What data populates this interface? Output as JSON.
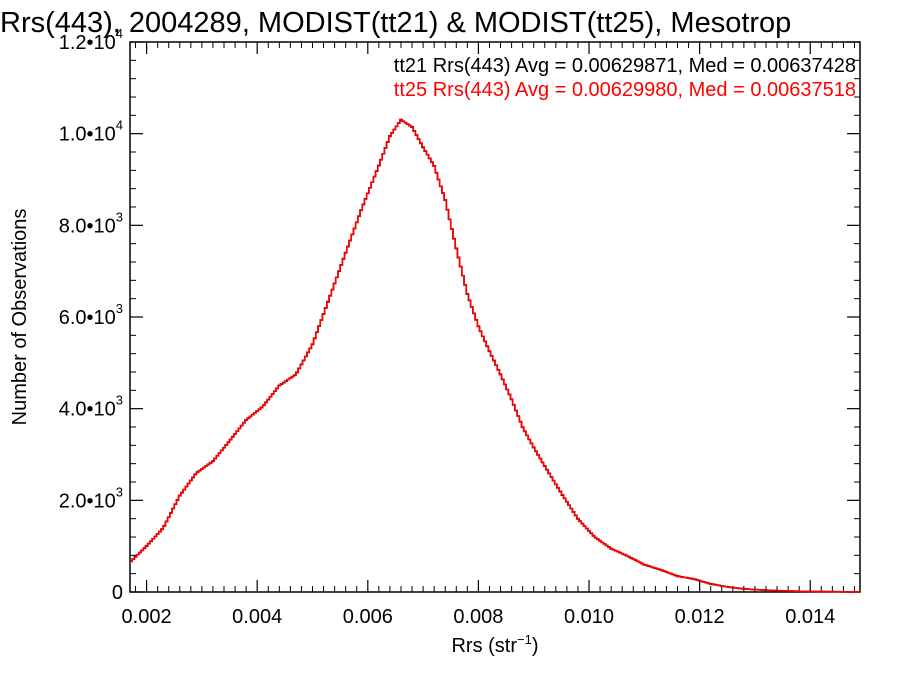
{
  "chart_data": {
    "type": "line",
    "title": "Rrs(443), 2004289, MODIST(tt21) & MODIST(tt25), Mesotrop",
    "xlabel_main": "Rrs (str",
    "xlabel_sup": "−1",
    "xlabel_end": ")",
    "ylabel": "Number of Observations",
    "xlim": [
      0.0017,
      0.0149
    ],
    "ylim": [
      0,
      12000
    ],
    "x_ticks": [
      {
        "value": 0.002,
        "label": "0.002"
      },
      {
        "value": 0.004,
        "label": "0.004"
      },
      {
        "value": 0.006,
        "label": "0.006"
      },
      {
        "value": 0.008,
        "label": "0.008"
      },
      {
        "value": 0.01,
        "label": "0.010"
      },
      {
        "value": 0.012,
        "label": "0.012"
      },
      {
        "value": 0.014,
        "label": "0.014"
      }
    ],
    "y_ticks": [
      {
        "value": 0,
        "mant": "0",
        "exp": ""
      },
      {
        "value": 2000,
        "mant": "2.0•10",
        "exp": "3"
      },
      {
        "value": 4000,
        "mant": "4.0•10",
        "exp": "3"
      },
      {
        "value": 6000,
        "mant": "6.0•10",
        "exp": "3"
      },
      {
        "value": 8000,
        "mant": "8.0•10",
        "exp": "3"
      },
      {
        "value": 10000,
        "mant": "1.0•10",
        "exp": "4"
      },
      {
        "value": 12000,
        "mant": "1.2•10",
        "exp": "4"
      }
    ],
    "legend_placement": "top-right",
    "series": [
      {
        "name": "tt21",
        "color": "#000000",
        "stats_text": "tt21 Rrs(443) Avg = 0.00629871, Med = 0.00637428",
        "x": [
          0.0017,
          0.002,
          0.0023,
          0.0026,
          0.0029,
          0.0032,
          0.0035,
          0.0038,
          0.0041,
          0.0044,
          0.0047,
          0.005,
          0.0053,
          0.0056,
          0.0059,
          0.0062,
          0.0064,
          0.0066,
          0.0068,
          0.007,
          0.0072,
          0.0074,
          0.0076,
          0.0078,
          0.008,
          0.0082,
          0.0084,
          0.0086,
          0.0088,
          0.009,
          0.0092,
          0.0095,
          0.0098,
          0.0101,
          0.0104,
          0.0107,
          0.011,
          0.0113,
          0.0116,
          0.0119,
          0.0122,
          0.0125,
          0.0128,
          0.0131,
          0.0134,
          0.0137,
          0.014,
          0.0143,
          0.0146,
          0.0149
        ],
        "y": [
          650,
          1000,
          1400,
          2100,
          2600,
          2850,
          3300,
          3750,
          4050,
          4500,
          4750,
          5400,
          6400,
          7400,
          8400,
          9300,
          9950,
          10300,
          10150,
          9700,
          9300,
          8550,
          7500,
          6500,
          5800,
          5250,
          4750,
          4200,
          3600,
          3150,
          2750,
          2150,
          1600,
          1200,
          950,
          780,
          600,
          480,
          350,
          280,
          180,
          110,
          70,
          45,
          30,
          18,
          12,
          8,
          5,
          3
        ]
      },
      {
        "name": "tt25",
        "color": "#ff0000",
        "stats_text": "tt25 Rrs(443) Avg = 0.00629980, Med = 0.00637518",
        "x": [
          0.0017,
          0.002,
          0.0023,
          0.0026,
          0.0029,
          0.0032,
          0.0035,
          0.0038,
          0.0041,
          0.0044,
          0.0047,
          0.005,
          0.0053,
          0.0056,
          0.0059,
          0.0062,
          0.0064,
          0.0066,
          0.0068,
          0.007,
          0.0072,
          0.0074,
          0.0076,
          0.0078,
          0.008,
          0.0082,
          0.0084,
          0.0086,
          0.0088,
          0.009,
          0.0092,
          0.0095,
          0.0098,
          0.0101,
          0.0104,
          0.0107,
          0.011,
          0.0113,
          0.0116,
          0.0119,
          0.0122,
          0.0125,
          0.0128,
          0.0131,
          0.0134,
          0.0137,
          0.014,
          0.0143,
          0.0146,
          0.0149
        ],
        "y": [
          640,
          1010,
          1390,
          2110,
          2590,
          2860,
          3290,
          3760,
          4040,
          4510,
          4740,
          5410,
          6390,
          7410,
          8390,
          9310,
          9940,
          10310,
          10140,
          9710,
          9290,
          8560,
          7490,
          6510,
          5790,
          5260,
          4740,
          4210,
          3590,
          3160,
          2740,
          2160,
          1590,
          1210,
          940,
          790,
          590,
          490,
          340,
          290,
          170,
          115,
          65,
          48,
          28,
          20,
          11,
          9,
          4,
          3
        ]
      }
    ]
  }
}
